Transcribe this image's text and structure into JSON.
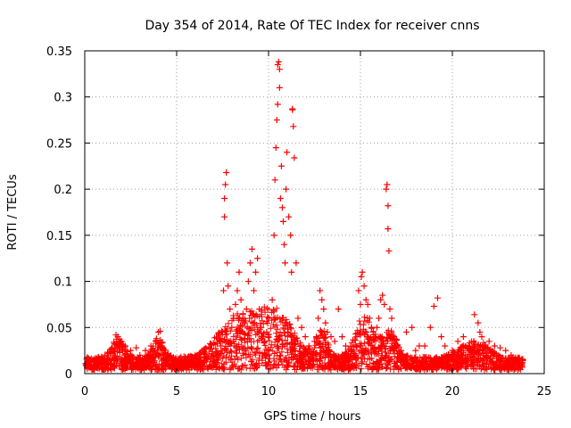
{
  "chart_data": {
    "type": "scatter",
    "title": "Day 354 of 2014, Rate Of TEC Index for receiver cnns",
    "xlabel": "GPS time / hours",
    "ylabel": "ROTI / TECUs",
    "xlim": [
      0,
      25
    ],
    "ylim": [
      0,
      0.35
    ],
    "xticks": [
      "0",
      "5",
      "10",
      "15",
      "20",
      "25"
    ],
    "xtick_values": [
      0,
      5,
      10,
      15,
      20,
      25
    ],
    "yticks": [
      "0",
      "0.05",
      "0.1",
      "0.15",
      "0.2",
      "0.25",
      "0.3",
      "0.35"
    ],
    "ytick_values": [
      0,
      0.05,
      0.1,
      0.15,
      0.2,
      0.25,
      0.3,
      0.35
    ],
    "grid": true,
    "marker": "+",
    "color": "#ff0000",
    "series": [
      {
        "name": "ROTI",
        "x": [
          0.1,
          0.5,
          1.0,
          1.5,
          1.7,
          1.8,
          2.0,
          2.2,
          2.5,
          2.8,
          3.0,
          3.3,
          3.6,
          3.9,
          4.0,
          4.1,
          4.2,
          4.5,
          5.0,
          5.5,
          6.0,
          6.5,
          7.0,
          7.2,
          7.4,
          7.5,
          7.55,
          7.6,
          7.6,
          7.65,
          7.7,
          7.75,
          7.8,
          7.9,
          8.0,
          8.1,
          8.2,
          8.3,
          8.4,
          8.5,
          8.6,
          8.7,
          8.8,
          8.9,
          9.0,
          9.1,
          9.2,
          9.3,
          9.4,
          9.5,
          9.6,
          9.7,
          9.8,
          9.9,
          10.0,
          10.2,
          10.3,
          10.35,
          10.4,
          10.45,
          10.5,
          10.5,
          10.55,
          10.6,
          10.6,
          10.65,
          10.7,
          10.75,
          10.8,
          10.85,
          10.9,
          10.95,
          11.0,
          11.1,
          11.2,
          11.25,
          11.3,
          11.3,
          11.35,
          11.4,
          11.5,
          11.6,
          11.8,
          12.0,
          12.2,
          12.5,
          12.6,
          12.7,
          12.8,
          12.9,
          13.0,
          13.1,
          13.2,
          13.4,
          13.6,
          13.8,
          14.0,
          14.2,
          14.5,
          14.8,
          14.9,
          15.0,
          15.05,
          15.1,
          15.2,
          15.3,
          15.4,
          15.5,
          15.6,
          15.7,
          15.8,
          15.9,
          16.0,
          16.1,
          16.2,
          16.3,
          16.4,
          16.45,
          16.5,
          16.5,
          16.55,
          16.6,
          16.7,
          16.8,
          17.0,
          17.2,
          17.5,
          17.8,
          18.0,
          18.2,
          18.5,
          18.8,
          19.0,
          19.2,
          19.4,
          19.6,
          20.0,
          20.3,
          20.6,
          20.9,
          21.2,
          21.4,
          21.5,
          21.6,
          21.8,
          22.0,
          22.3,
          22.6,
          22.9,
          23.2,
          23.5,
          23.8
        ],
        "y": [
          0.009,
          0.012,
          0.015,
          0.028,
          0.042,
          0.04,
          0.035,
          0.03,
          0.025,
          0.028,
          0.02,
          0.025,
          0.03,
          0.038,
          0.045,
          0.046,
          0.03,
          0.02,
          0.012,
          0.01,
          0.012,
          0.014,
          0.018,
          0.02,
          0.03,
          0.045,
          0.09,
          0.17,
          0.19,
          0.205,
          0.218,
          0.12,
          0.095,
          0.07,
          0.05,
          0.06,
          0.075,
          0.09,
          0.11,
          0.08,
          0.06,
          0.055,
          0.07,
          0.1,
          0.12,
          0.135,
          0.09,
          0.11,
          0.125,
          0.07,
          0.05,
          0.04,
          0.035,
          0.045,
          0.06,
          0.08,
          0.15,
          0.21,
          0.245,
          0.275,
          0.292,
          0.335,
          0.338,
          0.31,
          0.33,
          0.19,
          0.225,
          0.18,
          0.165,
          0.14,
          0.12,
          0.2,
          0.24,
          0.17,
          0.15,
          0.11,
          0.286,
          0.287,
          0.268,
          0.234,
          0.12,
          0.06,
          0.05,
          0.04,
          0.03,
          0.035,
          0.04,
          0.06,
          0.09,
          0.08,
          0.07,
          0.055,
          0.045,
          0.04,
          0.035,
          0.07,
          0.04,
          0.03,
          0.025,
          0.04,
          0.09,
          0.075,
          0.105,
          0.11,
          0.095,
          0.08,
          0.075,
          0.06,
          0.05,
          0.045,
          0.04,
          0.05,
          0.06,
          0.08,
          0.085,
          0.075,
          0.2,
          0.205,
          0.182,
          0.157,
          0.133,
          0.07,
          0.06,
          0.04,
          0.03,
          0.025,
          0.045,
          0.05,
          0.025,
          0.03,
          0.03,
          0.05,
          0.073,
          0.082,
          0.04,
          0.03,
          0.025,
          0.035,
          0.04,
          0.03,
          0.064,
          0.055,
          0.045,
          0.04,
          0.03,
          0.035,
          0.03,
          0.028,
          0.025,
          0.02,
          0.015,
          0.012
        ]
      }
    ]
  }
}
